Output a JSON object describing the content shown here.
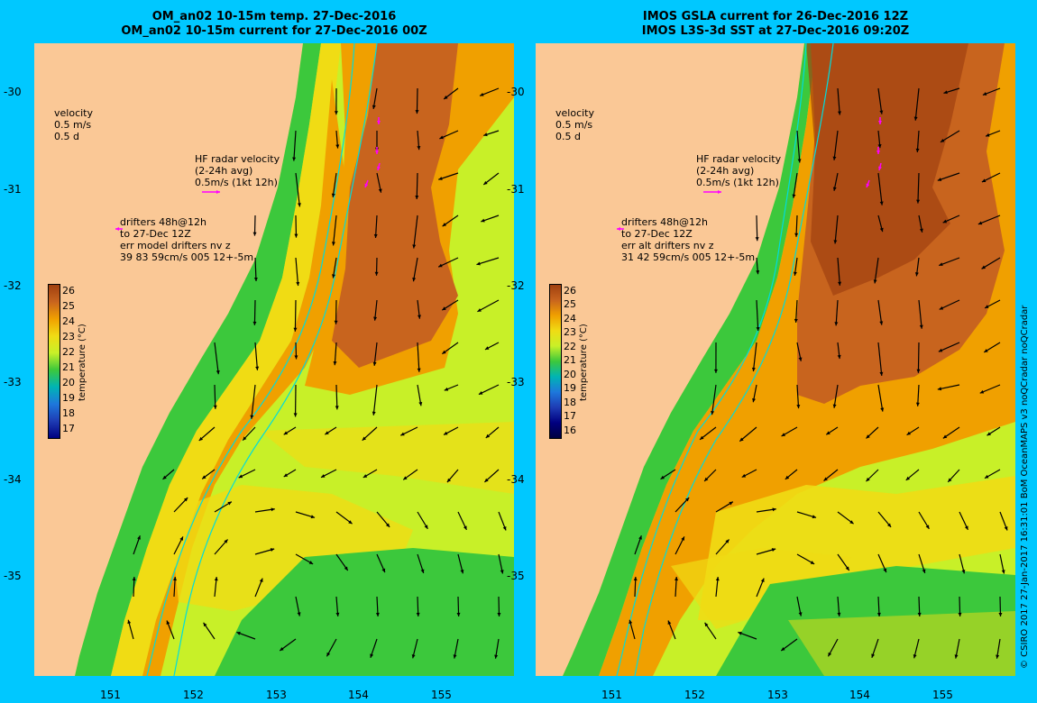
{
  "left_panel": {
    "title_line1": "OM_an02 10-15m temp. 27-Dec-2016",
    "title_line2": "OM_an02 10-15m current for 27-Dec-2016 00Z",
    "velocity_legend": [
      "velocity",
      "0.5 m/s",
      "0.5 d"
    ],
    "hf_radar_legend": [
      "HF radar velocity",
      "(2-24h avg)",
      "0.5m/s (1kt 12h)"
    ],
    "drifter_legend": [
      "drifters 48h@12h",
      "to 27-Dec 12Z",
      "err model drifters nv z",
      "39 83 59cm/s 005 12+-5m"
    ],
    "colorbar_ticks": [
      "26",
      "25",
      "24",
      "23",
      "22",
      "21",
      "20",
      "19",
      "18",
      "17"
    ],
    "colorbar_title": "temperature (°C)"
  },
  "right_panel": {
    "title_line1": "IMOS GSLA current for 26-Dec-2016 12Z",
    "title_line2": "IMOS L3S-3d SST at 27-Dec-2016 09:20Z",
    "velocity_legend": [
      "velocity",
      "0.5 m/s",
      "0.5 d"
    ],
    "hf_radar_legend": [
      "HF radar velocity",
      "(2-24h avg)",
      "0.5m/s (1kt 12h)"
    ],
    "drifter_legend": [
      "drifters 48h@12h",
      "to 27-Dec 12Z",
      "err alt drifters nv z",
      "31 42 59cm/s 005 12+-5m"
    ],
    "colorbar_ticks": [
      "26",
      "25",
      "24",
      "23",
      "22",
      "21",
      "20",
      "19",
      "18",
      "17",
      "16"
    ],
    "colorbar_title": "temperature (°C)"
  },
  "axes": {
    "lat_ticks": [
      "-30",
      "-31",
      "-32",
      "-33",
      "-34",
      "-35"
    ],
    "lon_ticks": [
      "151",
      "152",
      "153",
      "154",
      "155"
    ]
  },
  "credit": "© CSIRO 2017   27-Jan-2017 16:31:01 BoM OceanMAPS v3 noQCradar noQCradar",
  "colors": {
    "background": "#00c8ff",
    "land": "#fac896",
    "warm": "#c8641e",
    "orange": "#f0a000",
    "yellow": "#f0dc14",
    "lightgreen": "#c8f028",
    "green": "#3cc83c",
    "hf_arrows": "#ff00ff",
    "isobath": "#00dcdc"
  }
}
